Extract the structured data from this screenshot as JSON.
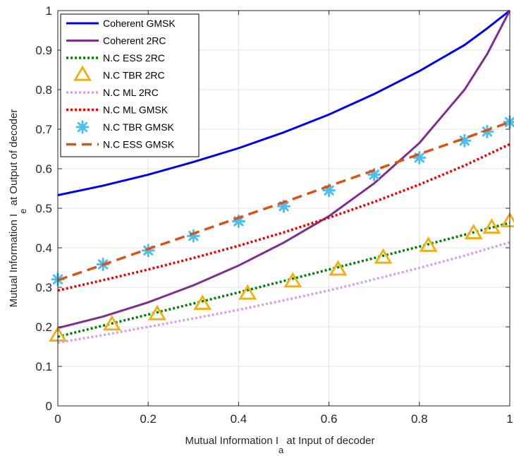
{
  "chart_data": {
    "type": "line",
    "title": "",
    "xlabel": {
      "main": "Mutual Information I",
      "sub": "a",
      "rest": " at Input of decoder"
    },
    "ylabel": {
      "main": "Mutual Information I",
      "sub": "e",
      "rest": " at Output of decoder"
    },
    "xlim": [
      0,
      1
    ],
    "ylim": [
      0,
      1
    ],
    "xticks": [
      0,
      0.2,
      0.4,
      0.6,
      0.8,
      1
    ],
    "xtick_labels": [
      "0",
      "0.2",
      "0.4",
      "0.6",
      "0.8",
      "1"
    ],
    "yticks": [
      0,
      0.1,
      0.2,
      0.3,
      0.4,
      0.5,
      0.6,
      0.7,
      0.8,
      0.9,
      1
    ],
    "ytick_labels": [
      "0",
      "0.1",
      "0.2",
      "0.3",
      "0.4",
      "0.5",
      "0.6",
      "0.7",
      "0.8",
      "0.9",
      "1"
    ],
    "grid": true,
    "legend_position": "top-left",
    "series": [
      {
        "name": "Coherent GMSK",
        "color": "#0000ee",
        "style": "solid",
        "marker": "none",
        "x": [
          0,
          0.1,
          0.2,
          0.3,
          0.4,
          0.5,
          0.6,
          0.7,
          0.8,
          0.9,
          0.95,
          1
        ],
        "y": [
          0.533,
          0.557,
          0.585,
          0.617,
          0.652,
          0.692,
          0.737,
          0.789,
          0.847,
          0.913,
          0.955,
          1.0
        ]
      },
      {
        "name": "Coherent 2RC",
        "color": "#7e2f8e",
        "style": "solid",
        "marker": "none",
        "x": [
          0,
          0.1,
          0.2,
          0.3,
          0.4,
          0.5,
          0.6,
          0.7,
          0.8,
          0.9,
          0.95,
          1
        ],
        "y": [
          0.197,
          0.226,
          0.262,
          0.305,
          0.355,
          0.413,
          0.48,
          0.563,
          0.665,
          0.8,
          0.89,
          1.0
        ]
      },
      {
        "name": "N.C ESS 2RC",
        "color": "#008000",
        "style": "dotted",
        "marker": "none",
        "x": [
          0,
          0.1,
          0.2,
          0.3,
          0.4,
          0.5,
          0.6,
          0.7,
          0.8,
          0.9,
          1
        ],
        "y": [
          0.175,
          0.203,
          0.231,
          0.259,
          0.287,
          0.316,
          0.345,
          0.374,
          0.403,
          0.433,
          0.463
        ]
      },
      {
        "name": "N.C TBR 2RC",
        "color": "#edb120",
        "style": "none",
        "marker": "triangle",
        "x": [
          0,
          0.12,
          0.22,
          0.32,
          0.42,
          0.52,
          0.62,
          0.72,
          0.82,
          0.92,
          0.96,
          1
        ],
        "y": [
          0.177,
          0.205,
          0.231,
          0.257,
          0.283,
          0.314,
          0.344,
          0.374,
          0.404,
          0.436,
          0.45,
          0.466
        ]
      },
      {
        "name": "N.C ML 2RC",
        "color": "#d4a3e0",
        "style": "dotted",
        "marker": "none",
        "x": [
          0,
          0.1,
          0.2,
          0.3,
          0.4,
          0.5,
          0.6,
          0.7,
          0.8,
          0.9,
          1
        ],
        "y": [
          0.16,
          0.179,
          0.2,
          0.221,
          0.243,
          0.267,
          0.292,
          0.32,
          0.349,
          0.38,
          0.414
        ]
      },
      {
        "name": "N.C ML GMSK",
        "color": "#ee0000",
        "style": "dotted",
        "marker": "none",
        "x": [
          0,
          0.1,
          0.2,
          0.3,
          0.4,
          0.5,
          0.6,
          0.7,
          0.8,
          0.9,
          1
        ],
        "y": [
          0.292,
          0.318,
          0.345,
          0.374,
          0.405,
          0.439,
          0.476,
          0.516,
          0.56,
          0.608,
          0.662
        ]
      },
      {
        "name": "N.C TBR GMSK",
        "color": "#4dbeee",
        "style": "none",
        "marker": "asterisk",
        "x": [
          0,
          0.1,
          0.2,
          0.3,
          0.4,
          0.5,
          0.6,
          0.7,
          0.8,
          0.9,
          0.95,
          1
        ],
        "y": [
          0.32,
          0.358,
          0.393,
          0.43,
          0.467,
          0.505,
          0.545,
          0.585,
          0.628,
          0.671,
          0.694,
          0.718
        ]
      },
      {
        "name": "N.C ESS GMSK",
        "color": "#d95319",
        "style": "dashed",
        "marker": "none",
        "x": [
          0,
          0.1,
          0.2,
          0.3,
          0.4,
          0.5,
          0.6,
          0.7,
          0.8,
          0.9,
          1
        ],
        "y": [
          0.318,
          0.357,
          0.397,
          0.436,
          0.476,
          0.515,
          0.556,
          0.596,
          0.637,
          0.677,
          0.718
        ]
      }
    ]
  }
}
